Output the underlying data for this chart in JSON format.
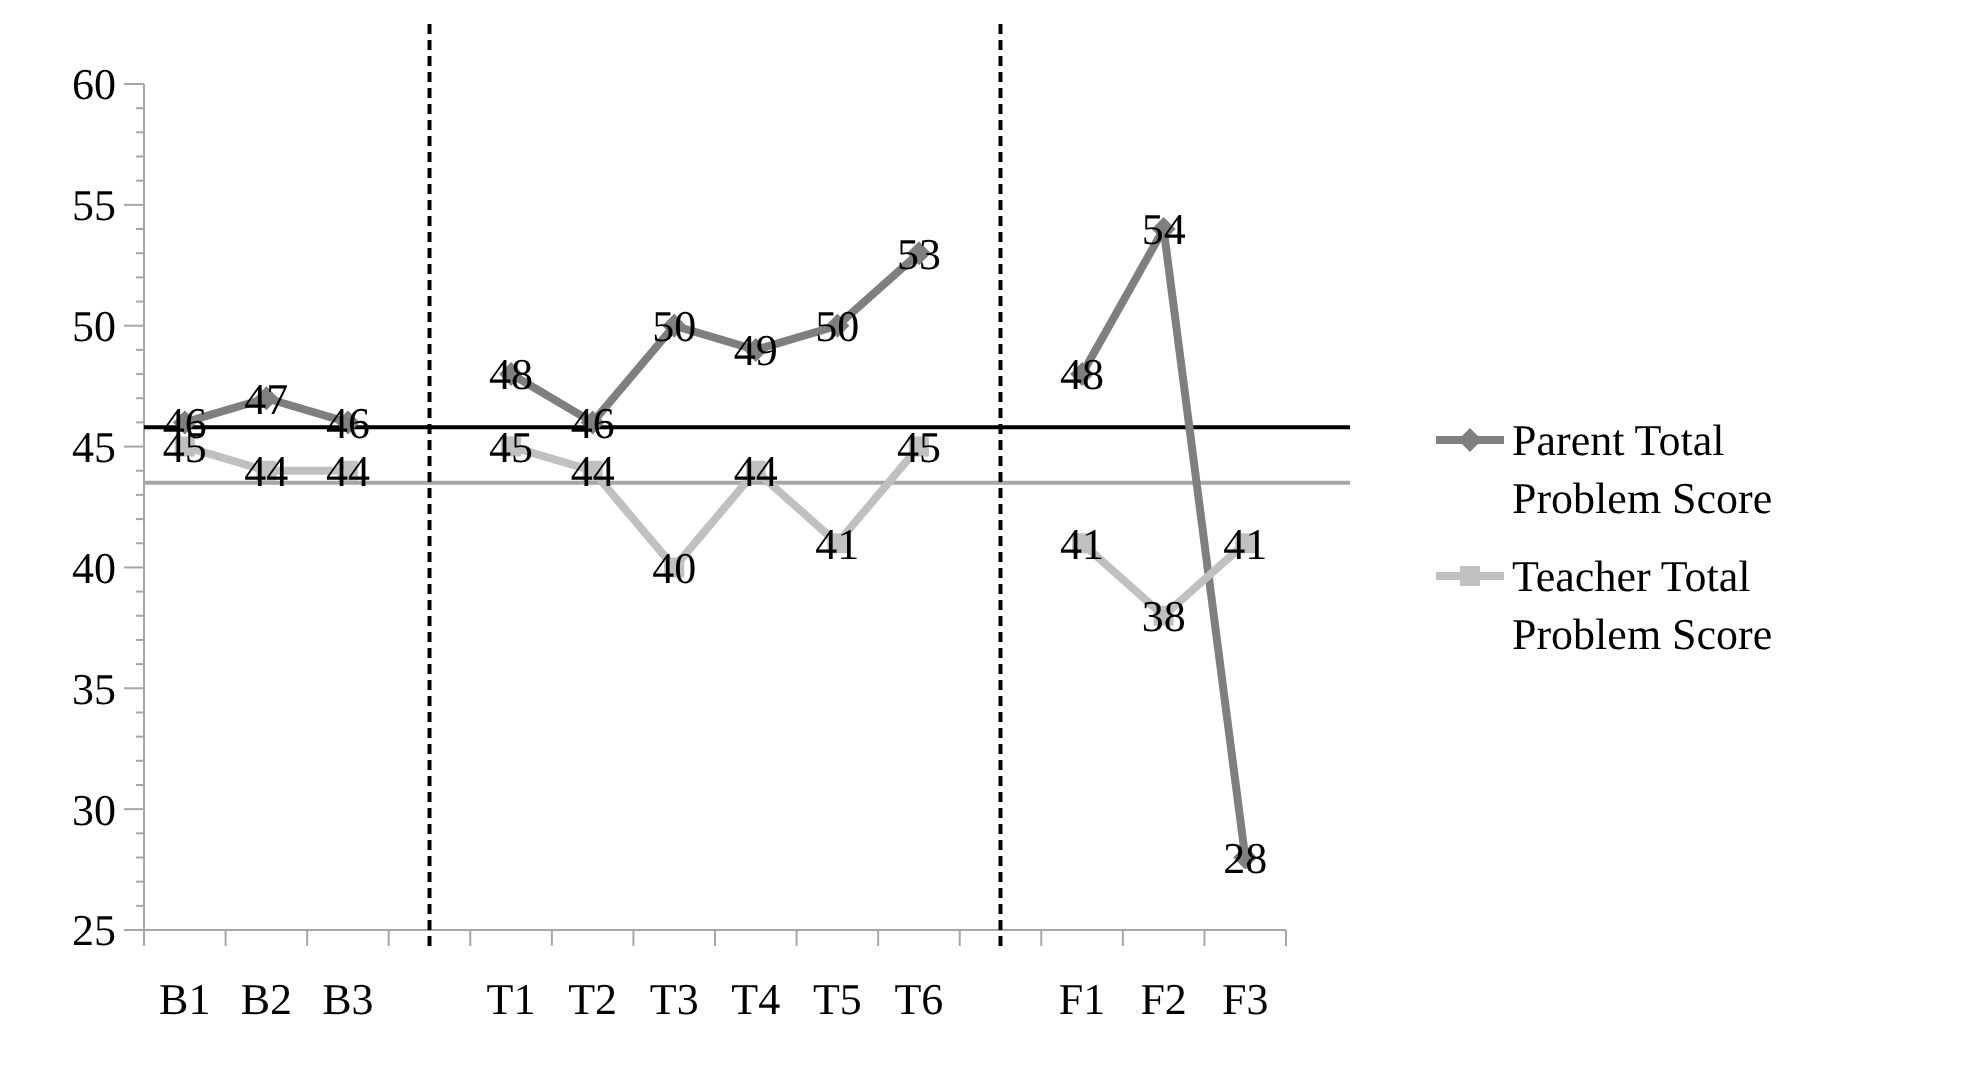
{
  "chart_data": {
    "type": "line",
    "categories": [
      "B1",
      "B2",
      "B3",
      null,
      "T1",
      "T2",
      "T3",
      "T4",
      "T5",
      "T6",
      null,
      "F1",
      "F2",
      "F3"
    ],
    "series": [
      {
        "name": "Parent Total Problem Score",
        "color": "#7f7f7f",
        "marker": "diamond",
        "values": [
          46,
          47,
          46,
          null,
          48,
          46,
          50,
          49,
          50,
          53,
          null,
          48,
          54,
          28
        ]
      },
      {
        "name": "Teacher Total Problem Score",
        "color": "#c0c0c0",
        "marker": "square",
        "values": [
          45,
          44,
          44,
          null,
          45,
          44,
          40,
          44,
          41,
          45,
          null,
          41,
          38,
          41
        ]
      }
    ],
    "ylim": [
      25,
      60
    ],
    "yticks": [
      25,
      30,
      35,
      40,
      45,
      50,
      55,
      60
    ],
    "ref_lines": [
      {
        "axis": "y",
        "value": 45.8,
        "color": "#000000",
        "line_style": "solid"
      },
      {
        "axis": "y",
        "value": 43.5,
        "color": "#a6a6a6",
        "line_style": "solid"
      }
    ],
    "data_labels": true,
    "legend": "right"
  }
}
